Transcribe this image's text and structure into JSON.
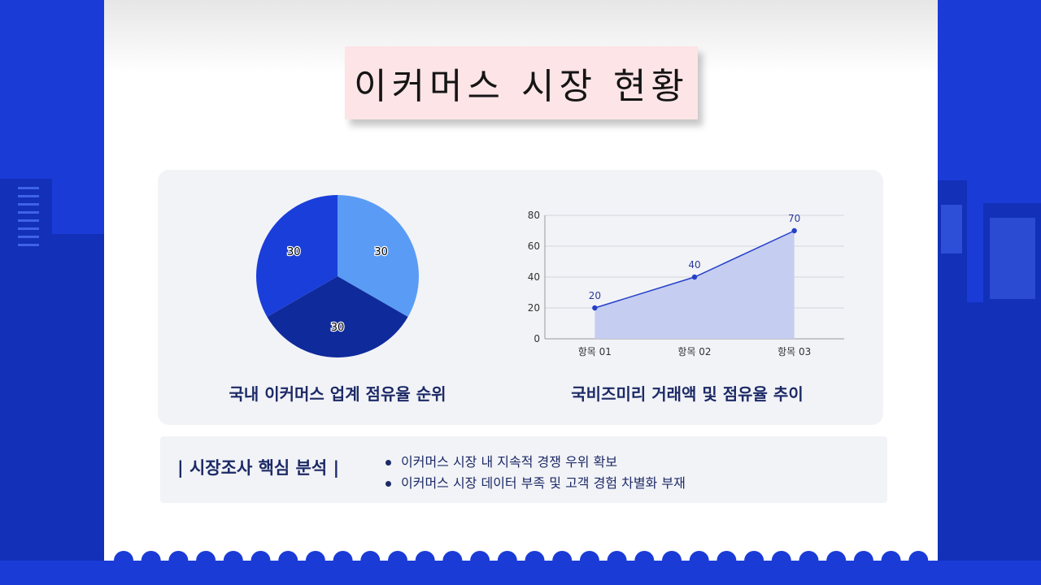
{
  "title": "이커머스 시장 현황",
  "pie_chart": {
    "caption": "국내 이커머스 업계 점유율 순위",
    "chart_data": {
      "type": "pie",
      "values": [
        30,
        30,
        30
      ],
      "labels": [
        "30",
        "30",
        "30"
      ],
      "colors": [
        "#5a9cf5",
        "#0f2a9b",
        "#1a3ed9"
      ]
    }
  },
  "line_chart": {
    "caption": "국비즈미리 거래액 및 점유율 추이",
    "chart_data": {
      "type": "area",
      "categories": [
        "항목 01",
        "항목 02",
        "항목 03"
      ],
      "values": [
        20,
        40,
        70
      ],
      "ylim": [
        0,
        80
      ],
      "yticks": [
        0,
        20,
        40,
        60,
        80
      ],
      "grid": true,
      "line_color": "#2440c8",
      "fill_color": "#c5cdf1"
    }
  },
  "analysis": {
    "heading": "| 시장조사 핵심 분석 |",
    "bullets": [
      "이커머스 시장 내 지속적 경쟁 우위 확보",
      "이커머스 시장 데이터 부족 및 고객 경험 차별화 부재"
    ]
  }
}
